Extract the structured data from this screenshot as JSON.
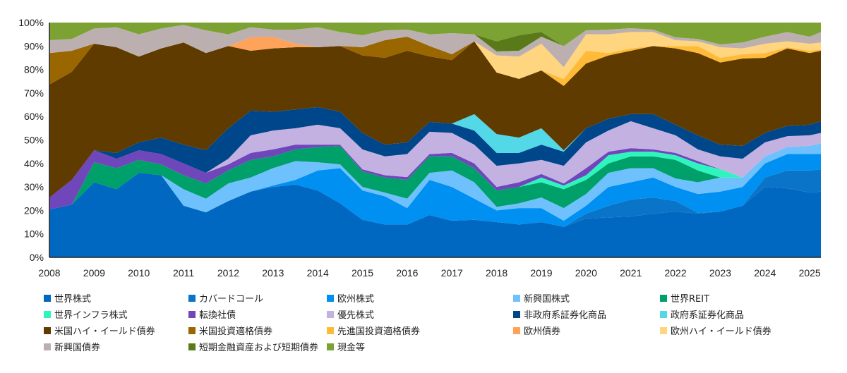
{
  "chart_data": {
    "type": "area",
    "stacked": true,
    "title": "",
    "xlabel": "",
    "ylabel": "",
    "ylim": [
      0,
      100
    ],
    "xlim": [
      2008,
      2025.25
    ],
    "y_ticks": [
      "0%",
      "10%",
      "20%",
      "30%",
      "40%",
      "50%",
      "60%",
      "70%",
      "80%",
      "90%",
      "100%"
    ],
    "x_ticks": [
      "2008",
      "2009",
      "2010",
      "2011",
      "2012",
      "2013",
      "2014",
      "2015",
      "2016",
      "2017",
      "2018",
      "2019",
      "2020",
      "2021",
      "2022",
      "2023",
      "2024",
      "2025"
    ],
    "legend_position": "bottom",
    "x": [
      2008,
      2008.5,
      2009,
      2009.5,
      2010,
      2010.5,
      2011,
      2011.5,
      2012,
      2012.5,
      2013,
      2013.5,
      2014,
      2014.5,
      2015,
      2015.5,
      2016,
      2016.5,
      2017,
      2017.5,
      2018,
      2018.5,
      2019,
      2019.5,
      2020,
      2020.5,
      2021,
      2021.5,
      2022,
      2022.5,
      2023,
      2023.5,
      2024,
      2024.5,
      2025,
      2025.25
    ],
    "series": [
      {
        "name": "世界株式",
        "color": "#0068c0",
        "values": [
          20.4,
          22.5,
          32,
          29,
          36,
          35,
          22,
          19.2,
          24,
          28,
          30,
          31,
          28.5,
          23,
          16,
          14,
          14,
          18,
          15.6,
          16,
          15,
          14,
          15,
          13,
          16.5,
          17,
          17.4,
          18.6,
          19.5,
          18.6,
          19.5,
          22,
          30,
          29.4,
          27.6,
          28
        ]
      },
      {
        "name": "カバードコール",
        "color": "#0a74c9",
        "values": [
          0,
          0,
          0,
          0,
          0,
          0,
          0,
          0,
          0,
          0,
          0,
          0,
          0,
          0,
          0,
          0,
          0,
          0,
          0,
          0,
          0,
          0,
          0,
          0,
          2.1,
          5,
          7.2,
          6.9,
          4.5,
          0.4,
          0,
          0,
          4,
          7.6,
          9.4,
          9.5
        ]
      },
      {
        "name": "欧州株式",
        "color": "#0090f2",
        "values": [
          0,
          0,
          0,
          0,
          0,
          0,
          0,
          0,
          0,
          0,
          0.6,
          2,
          8.5,
          15,
          12.5,
          12,
          7,
          15,
          14.4,
          9,
          5,
          7,
          6,
          2.6,
          3.4,
          8,
          7.4,
          8.5,
          6,
          8,
          8.5,
          8,
          6,
          7,
          7,
          6.5
        ]
      },
      {
        "name": "新興国株式",
        "color": "#6fc1fd",
        "values": [
          0,
          0,
          0,
          0,
          0,
          0,
          7,
          5.8,
          7.5,
          6,
          7.4,
          8,
          3.5,
          1.6,
          1.5,
          1.6,
          4,
          3,
          7,
          7,
          1.5,
          2,
          4.5,
          5.4,
          5,
          6,
          6,
          4,
          3.6,
          5,
          6,
          4,
          3,
          3,
          3.5,
          4.6
        ]
      },
      {
        "name": "世界REIT",
        "color": "#00a06a",
        "values": [
          0,
          0,
          8.5,
          9,
          5.5,
          4.6,
          6,
          6.5,
          5.5,
          7.5,
          5,
          5,
          6.5,
          7.9,
          6.6,
          6.4,
          8,
          7,
          6,
          6,
          7,
          7,
          6.5,
          8,
          6,
          4,
          5,
          5,
          7.9,
          5,
          0,
          0,
          0,
          0,
          0,
          0
        ]
      },
      {
        "name": "世界インフラ株式",
        "color": "#2ef5bd",
        "values": [
          0,
          0,
          0,
          0,
          0,
          0,
          0,
          0,
          0,
          0,
          0,
          0,
          0,
          0,
          0,
          0,
          0,
          0,
          0,
          0,
          0,
          0,
          2,
          1.6,
          2,
          3.5,
          2,
          2,
          2,
          3,
          3.5,
          0,
          0,
          0,
          0,
          0
        ]
      },
      {
        "name": "転換社債",
        "color": "#7046bb",
        "values": [
          5.1,
          10.5,
          5.1,
          4,
          4.1,
          4.4,
          5,
          4.5,
          2.6,
          3,
          3,
          2,
          1,
          0.5,
          0.9,
          1,
          1.2,
          1,
          1.5,
          2,
          1.5,
          2,
          1.5,
          0.9,
          3,
          1.5,
          1.5,
          1,
          1,
          1,
          0,
          0,
          0,
          0,
          0,
          0
        ]
      },
      {
        "name": "優先株式",
        "color": "#c3b1e1",
        "values": [
          0,
          0,
          0,
          0,
          0,
          0,
          0,
          0,
          2.4,
          7.5,
          8,
          7,
          8.5,
          7,
          8.5,
          8,
          9.8,
          9.5,
          8.5,
          8,
          9,
          8,
          6,
          7.5,
          11,
          9,
          11.5,
          9,
          7.5,
          5,
          5.5,
          8,
          6,
          4.6,
          4.5,
          4.4
        ]
      },
      {
        "name": "非政府系証券化商品",
        "color": "#00468b",
        "values": [
          0,
          0,
          0,
          2.5,
          3.4,
          7,
          8,
          9.6,
          13,
          10.5,
          8,
          8,
          7.5,
          7,
          7,
          5,
          5,
          4.2,
          4,
          6,
          5.5,
          4.5,
          6.5,
          6,
          6,
          5,
          3,
          6,
          4.5,
          6,
          5,
          5.5,
          4,
          4.4,
          4.5,
          5
        ]
      },
      {
        "name": "政府系証券化商品",
        "color": "#52d8e6",
        "values": [
          0,
          0,
          0,
          0,
          0,
          0,
          0,
          0,
          0,
          0,
          0,
          0,
          0,
          0,
          0,
          0,
          0,
          0,
          0,
          7,
          8,
          6.5,
          7,
          0.6,
          0,
          0,
          0,
          0,
          0,
          0,
          0,
          0,
          0,
          0,
          0,
          0
        ]
      },
      {
        "name": "米国ハイ・イールド債券",
        "color": "#603b00",
        "values": [
          48.1,
          46,
          45.4,
          45,
          36.5,
          38,
          43.5,
          41.4,
          35,
          25.5,
          27,
          26.5,
          25.5,
          28,
          33,
          37,
          39,
          27.9,
          27,
          31,
          26.2,
          25,
          24.6,
          27.4,
          27.6,
          27,
          27,
          29,
          32.5,
          35,
          35,
          37.2,
          32,
          33,
          30.5,
          30
        ]
      },
      {
        "name": "米国投資適格債券",
        "color": "#996600",
        "values": [
          13.4,
          9,
          0,
          0,
          0,
          0,
          0,
          0,
          0,
          0,
          0,
          0,
          0,
          0,
          3.5,
          7.5,
          6,
          4.4,
          2.5,
          0,
          0,
          0,
          0,
          0,
          0,
          0,
          0,
          0,
          0,
          0,
          0,
          0,
          0,
          0,
          0,
          0
        ]
      },
      {
        "name": "先進国投資適格債券",
        "color": "#ffbb38",
        "values": [
          0,
          0,
          0,
          0,
          0,
          0,
          0,
          0,
          0,
          0,
          0,
          0,
          0,
          0,
          0,
          0,
          0,
          0,
          0,
          0,
          0,
          0,
          0,
          3,
          5.4,
          1,
          1,
          0,
          1,
          3,
          2,
          1.8,
          2,
          0.5,
          1,
          0.5
        ]
      },
      {
        "name": "欧州債券",
        "color": "#ffa35a",
        "values": [
          0,
          0,
          0,
          0,
          0,
          0,
          0,
          0,
          0,
          5.7,
          5,
          1.5,
          0,
          0,
          0,
          0,
          0,
          0,
          0,
          0,
          0,
          0,
          0,
          0,
          0,
          0,
          0,
          0,
          0,
          0,
          0,
          0,
          0,
          0,
          0,
          0
        ]
      },
      {
        "name": "欧州ハイ・イールド債券",
        "color": "#ffd580",
        "values": [
          0,
          0,
          0,
          0,
          0,
          0,
          0,
          0,
          0,
          0,
          0,
          0,
          0,
          0,
          0,
          0,
          0,
          0,
          0,
          0,
          7.3,
          9.5,
          11.4,
          5,
          7,
          8,
          7,
          6,
          2.5,
          2,
          4.5,
          2.5,
          4,
          2.5,
          3,
          3
        ]
      },
      {
        "name": "新興国債券",
        "color": "#bcafaf",
        "values": [
          5.5,
          5,
          6.5,
          8.5,
          9.5,
          8.5,
          7.5,
          9.7,
          5,
          4.3,
          3,
          6,
          8.5,
          6,
          5.1,
          4.2,
          3,
          5,
          9,
          3,
          1.7,
          2.5,
          3,
          9,
          1.7,
          2,
          1.6,
          1,
          1.2,
          1,
          1.2,
          2.5,
          3,
          4,
          3,
          4.5
        ]
      },
      {
        "name": "短期金融資産および短期債券",
        "color": "#5a7a1a",
        "values": [
          0,
          0,
          0,
          0,
          0,
          0,
          0,
          0,
          0,
          0,
          0,
          0,
          0,
          0,
          0,
          0,
          0,
          0,
          0,
          0,
          4.3,
          6.6,
          2,
          0,
          0,
          0,
          0,
          0,
          0,
          0,
          0,
          0,
          0,
          0,
          0,
          0
        ]
      },
      {
        "name": "現金等",
        "color": "#7ba232",
        "values": [
          7.5,
          7,
          2.5,
          2,
          5,
          2.5,
          1,
          3.3,
          5,
          2,
          3,
          3,
          2,
          4,
          5.4,
          3.3,
          3,
          5,
          4.5,
          5,
          8,
          5.4,
          4,
          10,
          3.3,
          3,
          2.4,
          3,
          6.3,
          7,
          9.3,
          8.5,
          6,
          4,
          6,
          4
        ]
      }
    ]
  }
}
